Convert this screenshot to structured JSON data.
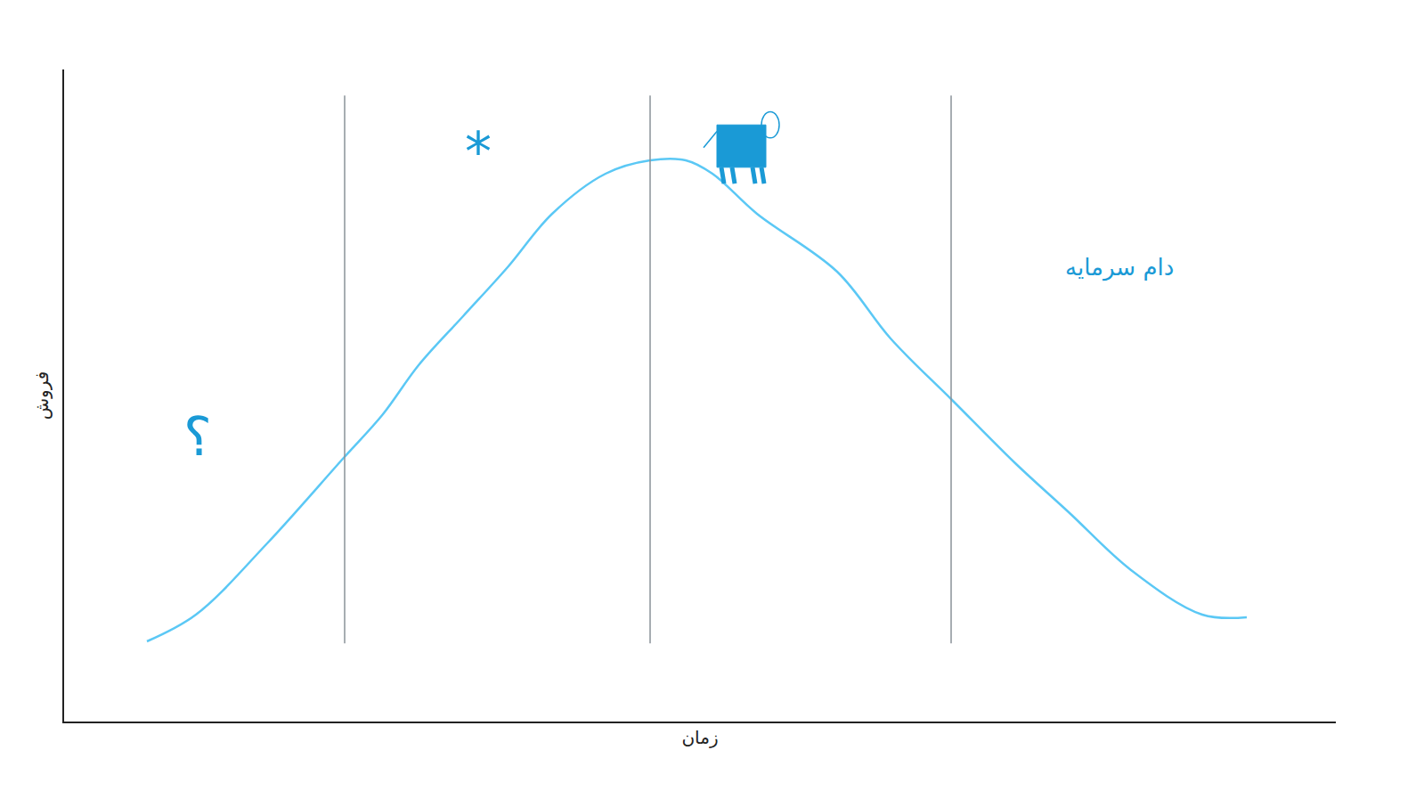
{
  "chart_data": {
    "type": "line",
    "x_label": "زمان",
    "y_label": "فروش",
    "x": [
      93,
      148,
      228,
      313,
      358,
      398,
      448,
      498,
      548,
      608,
      658,
      698,
      728,
      778,
      868,
      928,
      998,
      1068,
      1128,
      1198,
      1278,
      1328
    ],
    "values": [
      90,
      120,
      200,
      295,
      345,
      400,
      455,
      510,
      570,
      615,
      630,
      630,
      615,
      570,
      505,
      430,
      360,
      290,
      235,
      170,
      120,
      117
    ],
    "color": "#5bc8f5",
    "xlim": [
      0,
      1428
    ],
    "ylim": [
      0,
      732
    ],
    "xticks": [],
    "yticks": [],
    "tick_labels": false,
    "grid": false,
    "stage_boundaries": [
      315,
      658,
      996
    ],
    "annotations": [
      {
        "text": "؟",
        "x": 150,
        "y": 320
      },
      {
        "text": "*",
        "x": 465,
        "y": 640
      },
      {
        "text": "دام سرمایه",
        "x": 1185,
        "y": 510
      }
    ]
  }
}
